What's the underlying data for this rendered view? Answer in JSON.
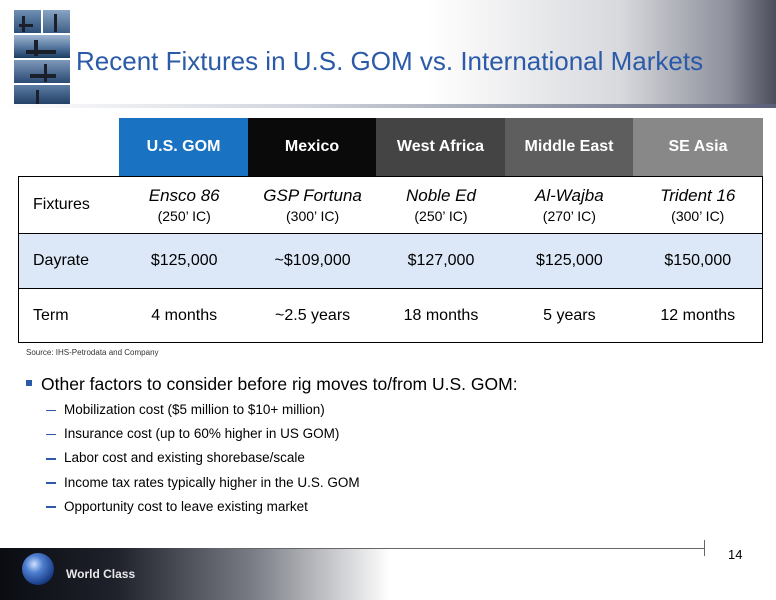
{
  "header": {
    "title": "Recent Fixtures in U.S. GOM vs. International Markets"
  },
  "colors": {
    "gom": "#1a73c2",
    "mexico": "#0a0a0a",
    "west_africa": "#444444",
    "middle_east": "#5e5e5e",
    "se_asia": "#888888"
  },
  "table": {
    "columns": [
      "U.S. GOM",
      "Mexico",
      "West Africa",
      "Middle East",
      "SE Asia"
    ],
    "rows": {
      "fixtures": {
        "label": "Fixtures",
        "cells": [
          {
            "name": "Ensco 86",
            "sub": "(250’ IC)"
          },
          {
            "name": "GSP Fortuna",
            "sub": "(300’ IC)"
          },
          {
            "name": "Noble Ed",
            "sub": "(250’ IC)"
          },
          {
            "name": "Al-Wajba",
            "sub": "(270’ IC)"
          },
          {
            "name": "Trident 16",
            "sub": "(300’ IC)"
          }
        ]
      },
      "dayrate": {
        "label": "Dayrate",
        "values": [
          "$125,000",
          "~$109,000",
          "$127,000",
          "$125,000",
          "$150,000"
        ]
      },
      "term": {
        "label": "Term",
        "values": [
          "4 months",
          "~2.5 years",
          "18 months",
          "5 years",
          "12 months"
        ]
      }
    }
  },
  "source": "Source: IHS-Petrodata and Company",
  "bullets": {
    "main": "Other factors to consider before rig moves to/from U.S. GOM:",
    "subs": [
      "Mobilization cost ($5 million to $10+ million)",
      "Insurance cost (up to 60% higher in US GOM)",
      "Labor cost and existing shorebase/scale",
      "Income tax rates typically higher in the U.S. GOM",
      "Opportunity cost to leave existing market"
    ]
  },
  "footer": {
    "brand": "World Class",
    "page_number": "14"
  }
}
